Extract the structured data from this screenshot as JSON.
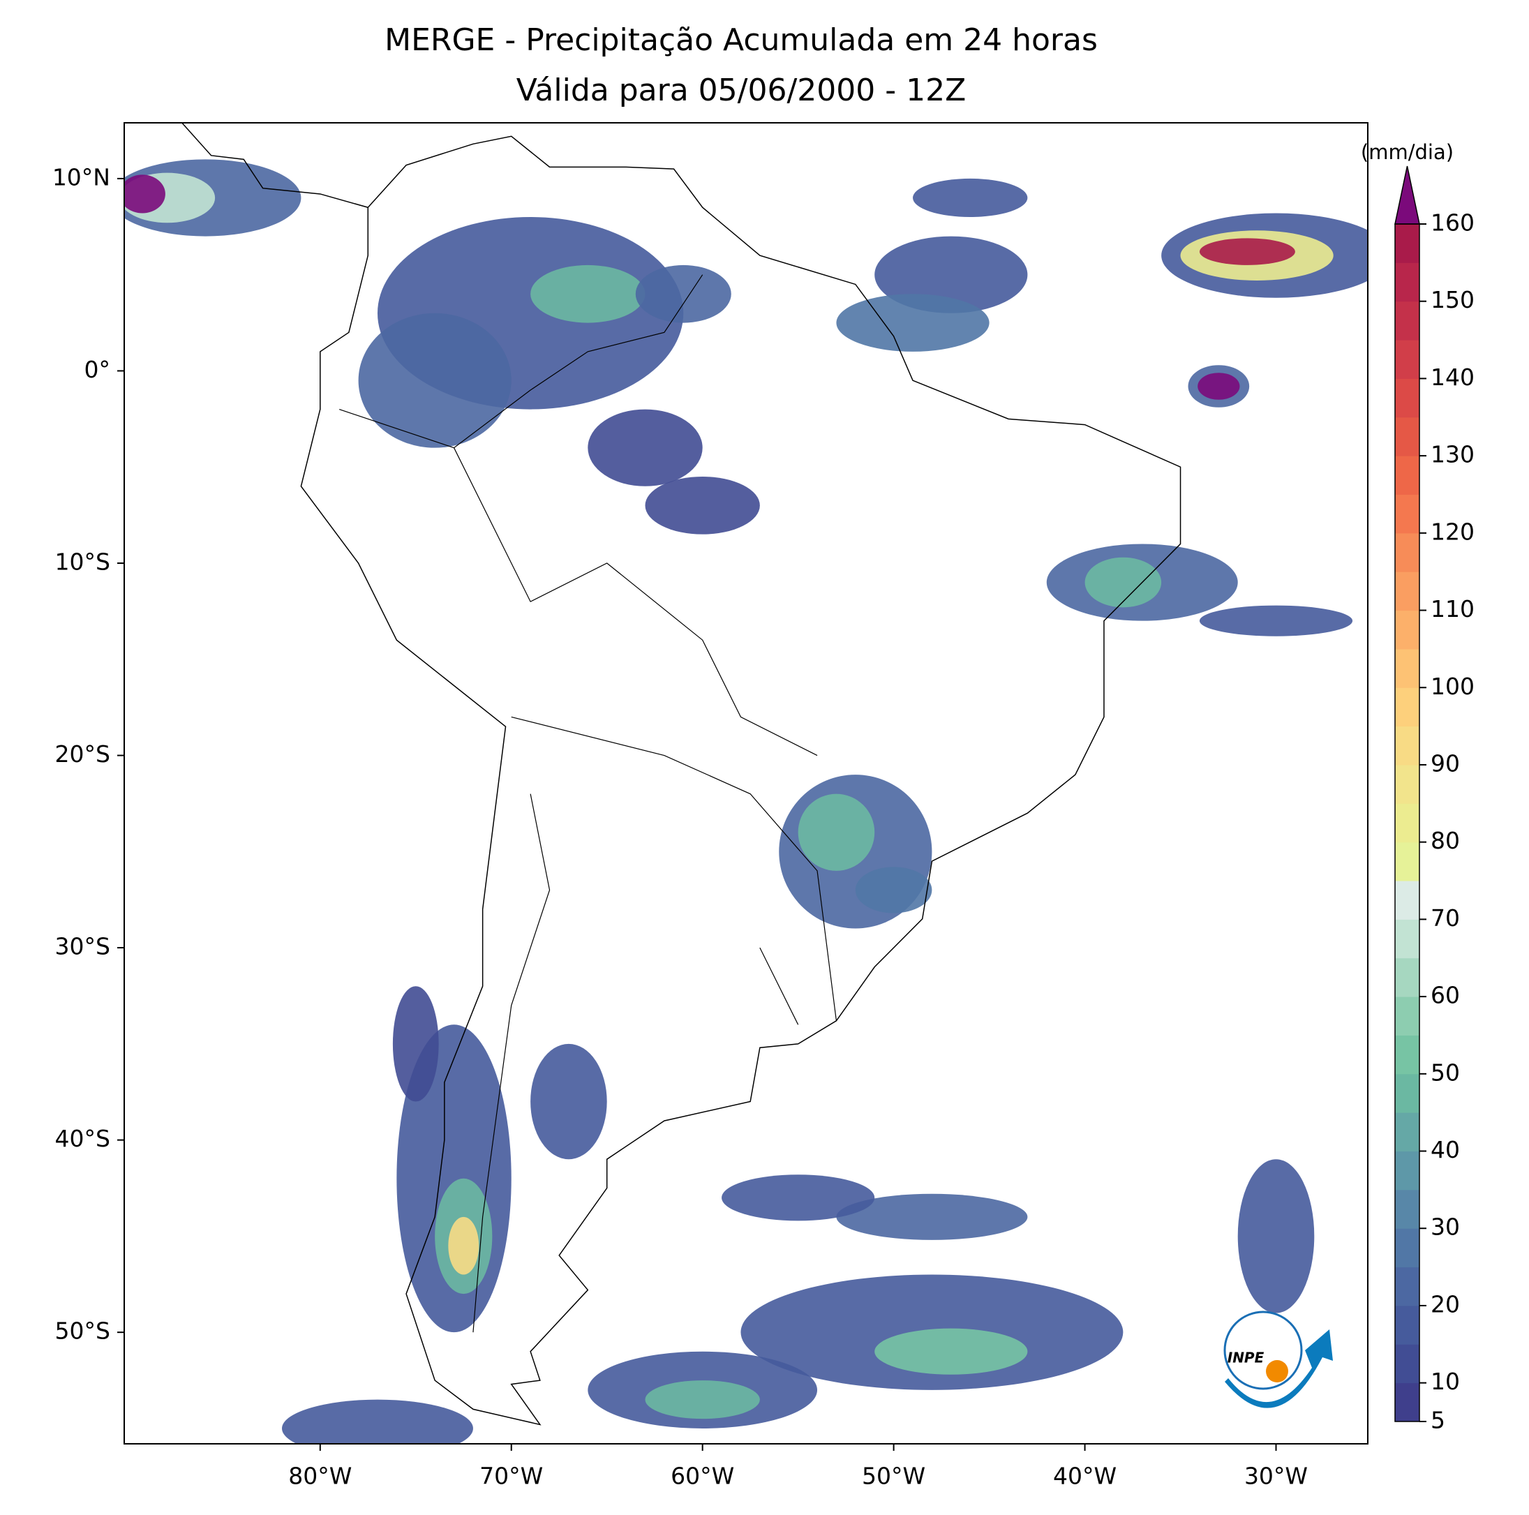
{
  "chart_data": {
    "type": "map",
    "title": "MERGE - Precipitação Acumulada em 24 horas",
    "subtitle": "Válida para 05/06/2000 - 12Z",
    "xlim": [
      -90.25,
      -25.2
    ],
    "ylim": [
      -55.8,
      12.9
    ],
    "xticks": [
      {
        "value": -80,
        "label": "80°W"
      },
      {
        "value": -70,
        "label": "70°W"
      },
      {
        "value": -60,
        "label": "60°W"
      },
      {
        "value": -50,
        "label": "50°W"
      },
      {
        "value": -40,
        "label": "40°W"
      },
      {
        "value": -30,
        "label": "30°W"
      }
    ],
    "yticks": [
      {
        "value": 10,
        "label": "10°N"
      },
      {
        "value": 0,
        "label": "0°"
      },
      {
        "value": -10,
        "label": "10°S"
      },
      {
        "value": -20,
        "label": "20°S"
      },
      {
        "value": -30,
        "label": "30°S"
      },
      {
        "value": -40,
        "label": "40°S"
      },
      {
        "value": -50,
        "label": "50°S"
      }
    ],
    "colorbar": {
      "label": "(mm/dia)",
      "lim": [
        5,
        160
      ],
      "ticks": [
        5,
        10,
        20,
        30,
        40,
        50,
        60,
        70,
        80,
        90,
        100,
        110,
        120,
        130,
        140,
        150,
        160
      ],
      "levels": [
        5,
        10,
        15,
        20,
        25,
        30,
        35,
        40,
        45,
        50,
        55,
        60,
        65,
        70,
        75,
        80,
        85,
        90,
        95,
        100,
        105,
        110,
        115,
        120,
        125,
        130,
        135,
        140,
        145,
        150,
        155,
        160
      ],
      "colors": [
        "#3f3f8c",
        "#414d94",
        "#465b9c",
        "#4c68a2",
        "#5177a6",
        "#5887a8",
        "#5e98a8",
        "#65a8a6",
        "#6bb8a2",
        "#77c4a4",
        "#8dcdb0",
        "#a6d7c0",
        "#c2e3d3",
        "#dcebe6",
        "#e6f298",
        "#ecec90",
        "#f2e48c",
        "#f8db85",
        "#fdd07c",
        "#fdc274",
        "#fcb06a",
        "#fa9e61",
        "#f78c58",
        "#f4784f",
        "#ee6748",
        "#e55846",
        "#dc4a47",
        "#d13e49",
        "#c4314a",
        "#b8264b",
        "#a91b4a"
      ],
      "extend_color": "#7b0a7b"
    },
    "logo_text": "INPE"
  }
}
